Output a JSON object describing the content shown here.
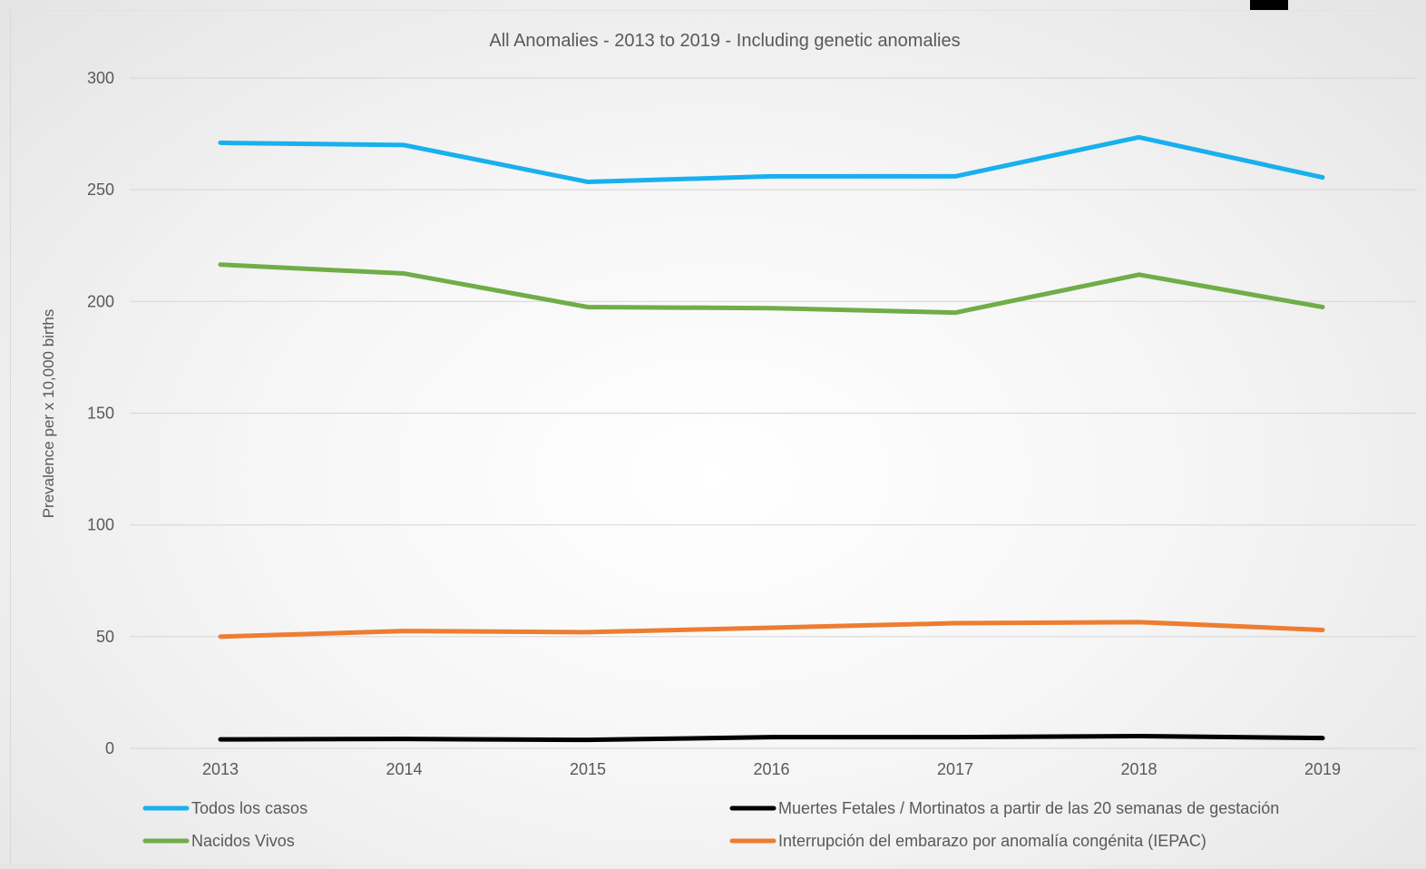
{
  "chart_data": {
    "type": "line",
    "title": "All Anomalies - 2013 to 2019 - Including genetic anomalies",
    "xlabel": "",
    "ylabel": "Prevalence per x 10,000 births",
    "categories": [
      "2013",
      "2014",
      "2015",
      "2016",
      "2017",
      "2018",
      "2019"
    ],
    "ylim": [
      0,
      300
    ],
    "yticks": [
      "0",
      "50",
      "100",
      "150",
      "200",
      "250",
      "300"
    ],
    "grid": true,
    "legend_position": "bottom",
    "series": [
      {
        "name": "Todos los casos",
        "color": "#18b0ee",
        "values": [
          271,
          270,
          253.5,
          256,
          256,
          273.5,
          255.5
        ]
      },
      {
        "name": "Nacidos Vivos",
        "color": "#70ad47",
        "values": [
          216.5,
          212.5,
          197.5,
          197,
          195,
          212,
          197.5
        ]
      },
      {
        "name": "Interrupción del embarazo por anomalía congénita (IEPAC)",
        "color": "#ed7d31",
        "values": [
          50,
          52.5,
          52,
          54,
          56,
          56.5,
          53
        ]
      },
      {
        "name": "Muertes Fetales / Mortinatos a partir de las 20 semanas de gestación",
        "color": "#000000",
        "values": [
          4,
          4.2,
          3.8,
          5,
          5,
          5.5,
          4.6
        ]
      }
    ]
  },
  "legend": [
    {
      "label": "Todos los casos",
      "color": "#18b0ee"
    },
    {
      "label": "Muertes Fetales / Mortinatos a partir de las 20 semanas de gestación",
      "color": "#000000"
    },
    {
      "label": "Nacidos Vivos",
      "color": "#70ad47"
    },
    {
      "label": "Interrupción del embarazo por anomalía congénita (IEPAC)",
      "color": "#ed7d31"
    }
  ],
  "colors": {
    "grid": "#d9d9d9",
    "text": "#595959"
  }
}
